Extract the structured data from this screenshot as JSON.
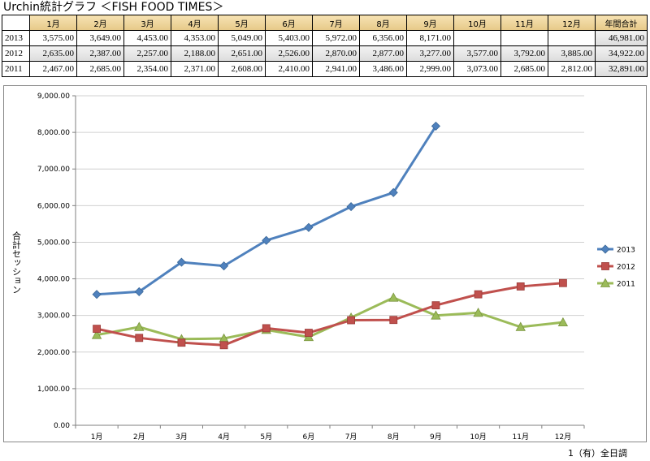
{
  "title": "Urchin統計グラフ ＜FISH FOOD TIMES＞",
  "footer": "1（有）全日調",
  "table": {
    "corner": "",
    "headers": [
      "1月",
      "2月",
      "3月",
      "4月",
      "5月",
      "6月",
      "7月",
      "8月",
      "9月",
      "10月",
      "11月",
      "12月",
      "年間合計"
    ],
    "rows": [
      {
        "year": "2013",
        "cells": [
          "3,575.00",
          "3,649.00",
          "4,453.00",
          "4,353.00",
          "5,049.00",
          "5,403.00",
          "5,972.00",
          "6,356.00",
          "8,171.00",
          "",
          "",
          "",
          "46,981.00"
        ]
      },
      {
        "year": "2012",
        "cells": [
          "2,635.00",
          "2,387.00",
          "2,257.00",
          "2,188.00",
          "2,651.00",
          "2,526.00",
          "2,870.00",
          "2,877.00",
          "3,277.00",
          "3,577.00",
          "3,792.00",
          "3,885.00",
          "34,922.00"
        ]
      },
      {
        "year": "2011",
        "cells": [
          "2,467.00",
          "2,685.00",
          "2,354.00",
          "2,371.00",
          "2,608.00",
          "2,410.00",
          "2,941.00",
          "3,486.00",
          "2,999.00",
          "3,073.00",
          "2,685.00",
          "2,812.00",
          "32,891.00"
        ]
      }
    ]
  },
  "chart_data": {
    "type": "line",
    "ylabel": "合計セッション",
    "ylim": [
      0,
      9000
    ],
    "yticks": [
      "0.00",
      "1,000.00",
      "2,000.00",
      "3,000.00",
      "4,000.00",
      "5,000.00",
      "6,000.00",
      "7,000.00",
      "8,000.00",
      "9,000.00"
    ],
    "grid": true,
    "legend_position": "right",
    "categories": [
      "1月",
      "2月",
      "3月",
      "4月",
      "5月",
      "6月",
      "7月",
      "8月",
      "9月",
      "10月",
      "11月",
      "12月"
    ],
    "series": [
      {
        "name": "2013",
        "color": "#4f81bd",
        "marker": "diamond",
        "values": [
          3575,
          3649,
          4453,
          4353,
          5049,
          5403,
          5972,
          6356,
          8171,
          null,
          null,
          null
        ]
      },
      {
        "name": "2012",
        "color": "#c0504d",
        "marker": "square",
        "values": [
          2635,
          2387,
          2257,
          2188,
          2651,
          2526,
          2870,
          2877,
          3277,
          3577,
          3792,
          3885
        ]
      },
      {
        "name": "2011",
        "color": "#9bbb59",
        "marker": "triangle",
        "values": [
          2467,
          2685,
          2354,
          2371,
          2608,
          2410,
          2941,
          3486,
          2999,
          3073,
          2685,
          2812
        ]
      }
    ]
  }
}
